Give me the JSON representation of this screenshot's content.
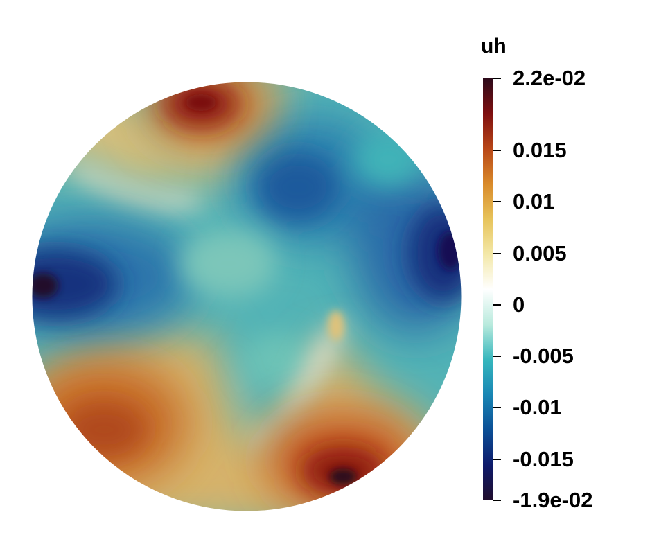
{
  "colorbar": {
    "title": "uh",
    "range": [
      -0.019,
      0.022
    ],
    "ticks": [
      {
        "label": "2.2e-02",
        "value": 0.022
      },
      {
        "label": "0.015",
        "value": 0.015
      },
      {
        "label": "0.01",
        "value": 0.01
      },
      {
        "label": "0.005",
        "value": 0.005
      },
      {
        "label": "0",
        "value": 0
      },
      {
        "label": "-0.005",
        "value": -0.005
      },
      {
        "label": "-0.01",
        "value": -0.01
      },
      {
        "label": "-0.015",
        "value": -0.015
      },
      {
        "label": "-1.9e-02",
        "value": -0.019
      }
    ],
    "colormap": [
      "#200d2c",
      "#0e1a6b",
      "#0b4f96",
      "#1986b4",
      "#36b7bd",
      "#b9eadd",
      "#ffffff",
      "#f3e8a8",
      "#e7c35a",
      "#d98a2a",
      "#b84617",
      "#7e0f10",
      "#2c0a1a"
    ]
  }
}
